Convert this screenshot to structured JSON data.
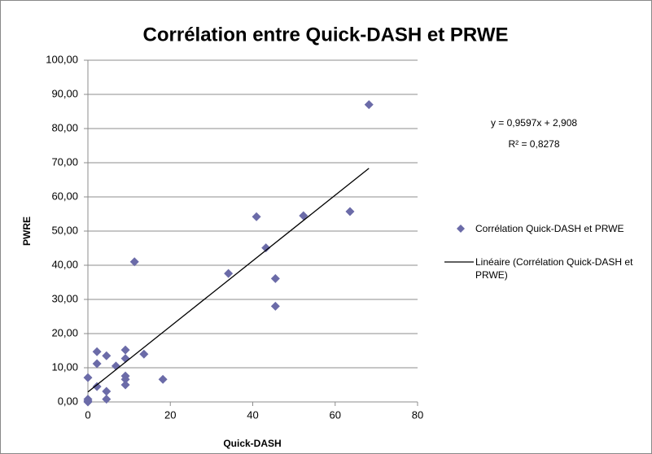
{
  "chart_data": {
    "type": "scatter",
    "title": "Corrélation entre Quick-DASH et PRWE",
    "xlabel": "Quick-DASH",
    "ylabel": "PWRE",
    "xlim": [
      0,
      80
    ],
    "xticks": [
      0,
      20,
      40,
      60,
      80
    ],
    "ylim": [
      0,
      100
    ],
    "yticks": [
      {
        "value": 0,
        "label": "0,00"
      },
      {
        "value": 10,
        "label": "10,00"
      },
      {
        "value": 20,
        "label": "20,00"
      },
      {
        "value": 30,
        "label": "30,00"
      },
      {
        "value": 40,
        "label": "40,00"
      },
      {
        "value": 50,
        "label": "50,00"
      },
      {
        "value": 60,
        "label": "60,00"
      },
      {
        "value": 70,
        "label": "70,00"
      },
      {
        "value": 80,
        "label": "80,00"
      },
      {
        "value": 90,
        "label": "90,00"
      },
      {
        "value": 100,
        "label": "100,00"
      }
    ],
    "grid": true,
    "legend": "right",
    "annotations": [
      "y = 0,9597x + 2,908",
      "R² = 0,8278"
    ],
    "series": [
      {
        "name": "Corrélation Quick-DASH et PRWE",
        "color": "#6b6ba8",
        "x": [
          0,
          0,
          0,
          0,
          2.2,
          2.2,
          2.2,
          4.5,
          4.5,
          4.5,
          6.8,
          9.1,
          9.1,
          9.1,
          9.1,
          9.1,
          11.3,
          13.6,
          18.2,
          34.1,
          40.9,
          43.2,
          45.5,
          45.5,
          52.3,
          63.6,
          68.2
        ],
        "values": [
          0,
          0.3,
          0.8,
          7.1,
          14.7,
          11.2,
          4.5,
          13.5,
          3.1,
          0.8,
          10.5,
          15.2,
          12.7,
          7.6,
          6.6,
          5.0,
          41.0,
          14.0,
          6.6,
          37.6,
          54.2,
          45.1,
          36.1,
          28.0,
          54.5,
          55.7,
          87.0
        ]
      },
      {
        "name": "Linéaire (Corrélation Quick-DASH et PRWE)",
        "color": "#000000",
        "x": [
          0,
          68.2
        ],
        "values": [
          2.908,
          68.36
        ]
      }
    ]
  }
}
